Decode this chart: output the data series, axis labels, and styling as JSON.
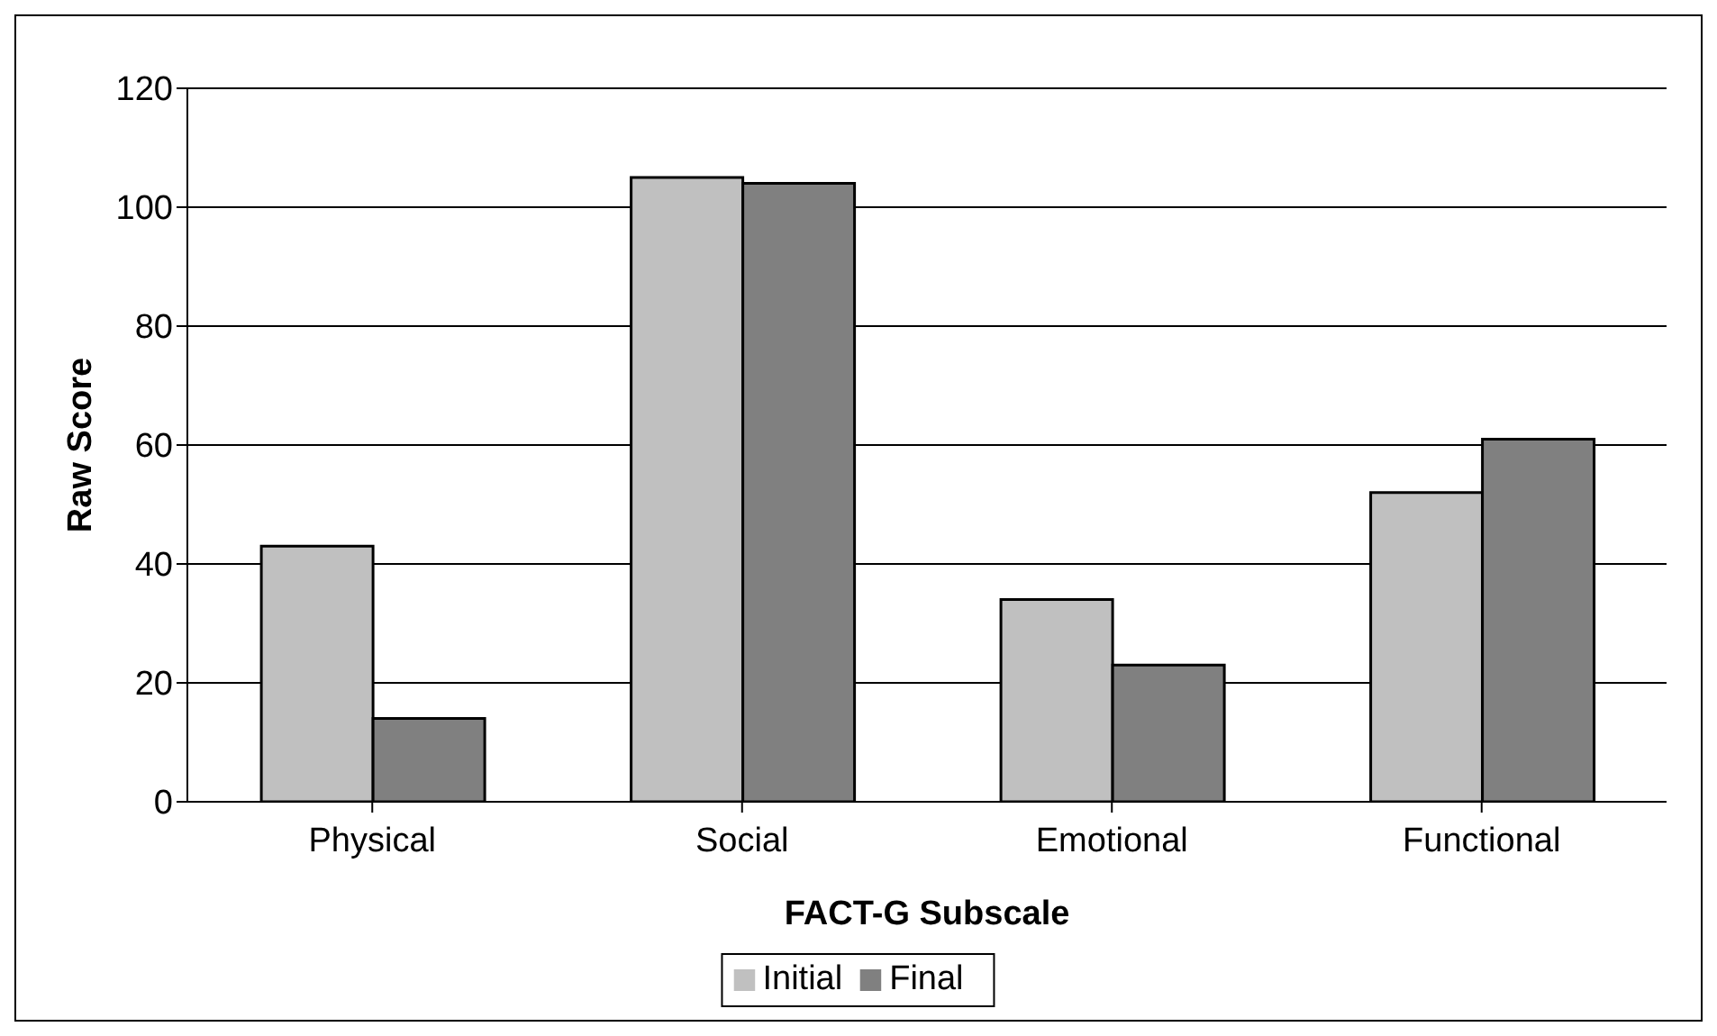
{
  "chart_data": {
    "type": "bar",
    "xlabel": "FACT-G Subscale",
    "ylabel": "Raw Score",
    "categories": [
      "Physical",
      "Social",
      "Emotional",
      "Functional"
    ],
    "series": [
      {
        "name": "Initial",
        "color": "#c0c0c0",
        "values": [
          43,
          105,
          34,
          52
        ]
      },
      {
        "name": "Final",
        "color": "#808080",
        "values": [
          14,
          104,
          23,
          61
        ]
      }
    ],
    "ylim": [
      0,
      120
    ],
    "yticks": [
      0,
      20,
      40,
      60,
      80,
      100,
      120
    ],
    "grid": "y",
    "legend": "bottom"
  }
}
